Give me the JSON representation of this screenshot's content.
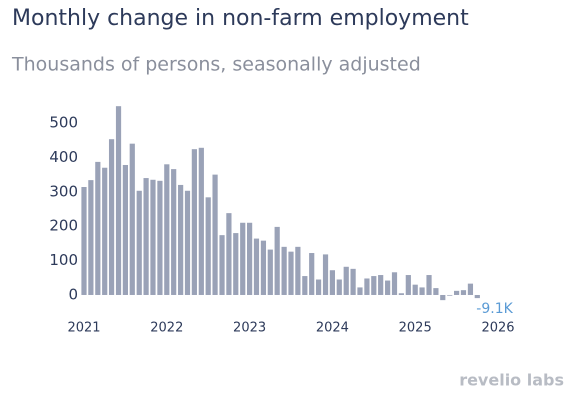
{
  "chart_data": {
    "type": "bar",
    "title": "Monthly change in non-farm employment",
    "subtitle": "Thousands of persons, seasonally adjusted",
    "watermark": "revelio labs",
    "color": "#9aa2b7",
    "label_color": "#5b9bd5",
    "x": [
      2021,
      2021.083,
      2021.167,
      2021.25,
      2021.333,
      2021.417,
      2021.5,
      2021.583,
      2021.667,
      2021.75,
      2021.833,
      2021.917,
      2022,
      2022.083,
      2022.167,
      2022.25,
      2022.333,
      2022.417,
      2022.5,
      2022.583,
      2022.667,
      2022.75,
      2022.833,
      2022.917,
      2023,
      2023.083,
      2023.167,
      2023.25,
      2023.333,
      2023.417,
      2023.5,
      2023.583,
      2023.667,
      2023.75,
      2023.833,
      2023.917,
      2024,
      2024.083,
      2024.167,
      2024.25,
      2024.333,
      2024.417,
      2024.5,
      2024.583,
      2024.667,
      2024.75,
      2024.833,
      2024.917,
      2025,
      2025.083,
      2025.167,
      2025.25,
      2025.333,
      2025.417,
      2025.5,
      2025.583,
      2025.667,
      2025.75
    ],
    "values": [
      314,
      334,
      387,
      370,
      453,
      549,
      378,
      440,
      303,
      340,
      335,
      332,
      380,
      366,
      320,
      303,
      424,
      428,
      284,
      350,
      174,
      238,
      180,
      210,
      210,
      164,
      158,
      132,
      198,
      140,
      126,
      140,
      55,
      122,
      45,
      118,
      72,
      45,
      82,
      76,
      22,
      48,
      55,
      58,
      42,
      66,
      5,
      58,
      30,
      22,
      58,
      20,
      -15,
      -2,
      12,
      14,
      33,
      -9.1
    ],
    "value_labels": [
      null,
      null,
      null,
      null,
      null,
      null,
      null,
      null,
      null,
      null,
      null,
      null,
      null,
      null,
      null,
      null,
      null,
      null,
      null,
      null,
      null,
      null,
      null,
      null,
      null,
      null,
      null,
      null,
      null,
      null,
      null,
      null,
      null,
      null,
      null,
      null,
      null,
      null,
      null,
      null,
      null,
      null,
      null,
      null,
      null,
      null,
      null,
      null,
      null,
      null,
      null,
      null,
      null,
      null,
      null,
      null,
      null,
      "-9.1K"
    ],
    "xlim": [
      2021,
      2026
    ],
    "xticks": [
      2021,
      2022,
      2023,
      2024,
      2025,
      2026
    ],
    "ylim": [
      -30,
      560
    ],
    "yticks": [
      0,
      100,
      200,
      300,
      400,
      500
    ],
    "grid": false
  }
}
